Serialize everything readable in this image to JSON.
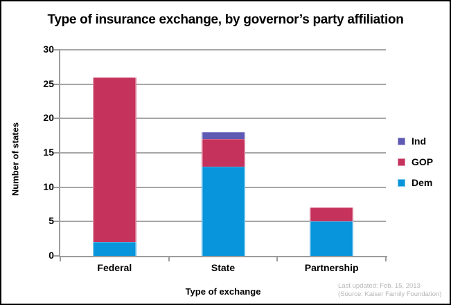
{
  "frame": {
    "background": "#ffffff",
    "border_color": "#000000"
  },
  "chart_data": {
    "type": "bar",
    "stacked": true,
    "title": "Type of insurance exchange, by governor’s party affiliation",
    "xlabel": "Type of exchange",
    "ylabel": "Number of states",
    "categories": [
      "Federal",
      "State",
      "Partnership"
    ],
    "series": [
      {
        "name": "Dem",
        "color": "#0995DB",
        "values": [
          2,
          13,
          5
        ]
      },
      {
        "name": "GOP",
        "color": "#C5325C",
        "values": [
          24,
          4,
          2
        ]
      },
      {
        "name": "Ind",
        "color": "#5E59B3",
        "values": [
          0,
          1,
          0
        ]
      }
    ],
    "stack_order": [
      "Dem",
      "GOP",
      "Ind"
    ],
    "totals": {
      "Federal": 26,
      "State": 18,
      "Partnership": 7
    },
    "ylim": [
      0,
      30
    ],
    "ytick_step": 5,
    "grid": true,
    "gridline_color": "#A6A6A6",
    "axis_color": "#9C9C9C",
    "legend": {
      "position": "right",
      "order": [
        "Ind",
        "GOP",
        "Dem"
      ]
    }
  },
  "footer": {
    "line1": "Last updated: Feb. 15, 2013",
    "line2": "(Source: Kaiser Family Foundation)"
  }
}
